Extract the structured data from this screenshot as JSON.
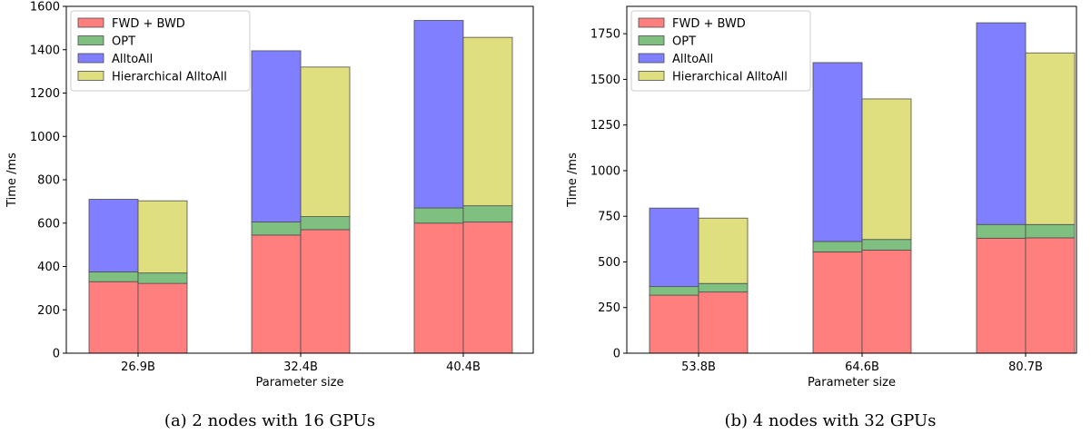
{
  "chart_data": [
    {
      "type": "bar",
      "stacked": true,
      "caption": "(a) 2 nodes with 16 GPUs",
      "xlabel": "Parameter size",
      "ylabel": "Time /ms",
      "ylim": [
        0,
        1600
      ],
      "yticks": [
        0,
        200,
        400,
        600,
        800,
        1000,
        1200,
        1400,
        1600
      ],
      "categories": [
        "26.9B",
        "32.4B",
        "40.4B"
      ],
      "legend_position": "top-left",
      "legend": [
        "FWD + BWD",
        "OPT",
        "AlltoAll",
        "Hierarchical AlltoAll"
      ],
      "groups": [
        {
          "name": "AlltoAll",
          "series": [
            {
              "name": "FWD + BWD",
              "color": "#ff7f7f",
              "values": [
                330,
                545,
                600
              ]
            },
            {
              "name": "OPT",
              "color": "#7fbf7f",
              "values": [
                45,
                60,
                70
              ]
            },
            {
              "name": "AlltoAll",
              "color": "#7f7fff",
              "values": [
                335,
                790,
                865
              ]
            }
          ]
        },
        {
          "name": "Hierarchical AlltoAll",
          "series": [
            {
              "name": "FWD + BWD",
              "color": "#ff7f7f",
              "values": [
                322,
                570,
                605
              ]
            },
            {
              "name": "OPT",
              "color": "#7fbf7f",
              "values": [
                48,
                60,
                75
              ]
            },
            {
              "name": "Hierarchical AlltoAll",
              "color": "#dfdf7f",
              "values": [
                333,
                690,
                777
              ]
            }
          ]
        }
      ]
    },
    {
      "type": "bar",
      "stacked": true,
      "caption": "(b) 4 nodes with 32 GPUs",
      "xlabel": "Parameter size",
      "ylabel": "Time /ms",
      "ylim": [
        0,
        1900
      ],
      "yticks": [
        0,
        250,
        500,
        750,
        1000,
        1250,
        1500,
        1750
      ],
      "categories": [
        "53.8B",
        "64.6B",
        "80.7B"
      ],
      "legend_position": "top-left",
      "legend": [
        "FWD + BWD",
        "OPT",
        "AlltoAll",
        "Hierarchical AlltoAll"
      ],
      "groups": [
        {
          "name": "AlltoAll",
          "series": [
            {
              "name": "FWD + BWD",
              "color": "#ff7f7f",
              "values": [
                318,
                555,
                630
              ]
            },
            {
              "name": "OPT",
              "color": "#7fbf7f",
              "values": [
                47,
                57,
                75
              ]
            },
            {
              "name": "AlltoAll",
              "color": "#7f7fff",
              "values": [
                430,
                980,
                1105
              ]
            }
          ]
        },
        {
          "name": "Hierarchical AlltoAll",
          "series": [
            {
              "name": "FWD + BWD",
              "color": "#ff7f7f",
              "values": [
                335,
                565,
                632
              ]
            },
            {
              "name": "OPT",
              "color": "#7fbf7f",
              "values": [
                47,
                58,
                73
              ]
            },
            {
              "name": "Hierarchical AlltoAll",
              "color": "#dfdf7f",
              "values": [
                358,
                770,
                940
              ]
            }
          ]
        }
      ]
    }
  ]
}
